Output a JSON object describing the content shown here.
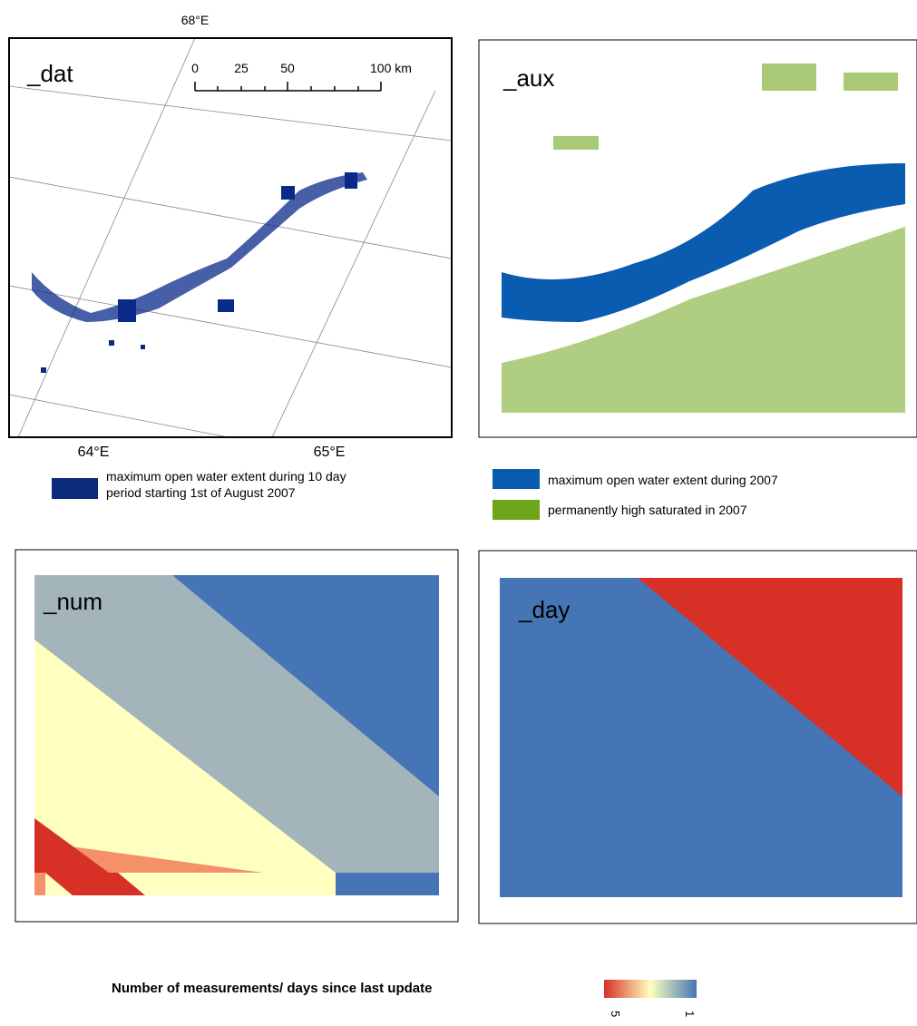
{
  "panels": [
    {
      "label": "_dat",
      "top_label": "68°E",
      "bottom_labels": [
        "64°E",
        "65°E"
      ],
      "scale_labels": [
        "0",
        "25",
        "50",
        "100 km"
      ],
      "legend": [
        "maximum open water extent during 10 day",
        "period starting 1st of August 2007"
      ]
    },
    {
      "label": "_aux",
      "legend": [
        "maximum open water extent during 2007",
        "permanently high saturated in 2007"
      ]
    },
    {
      "label": "_num"
    },
    {
      "label": "_day"
    }
  ],
  "colorbar": {
    "title": "Number of measurements/ days since last update",
    "labels": [
      "5",
      "1"
    ]
  }
}
